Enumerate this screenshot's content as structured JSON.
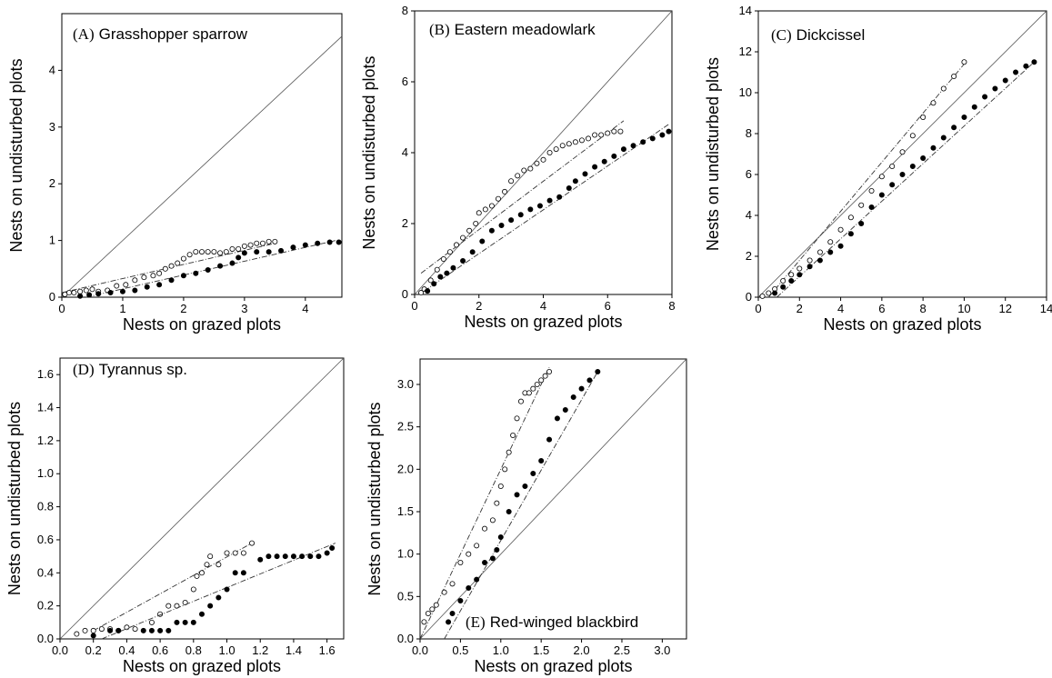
{
  "chart_data": [
    {
      "type": "scatter",
      "title_tag": "(A)",
      "title_name": "Grasshopper sparrow",
      "xlabel": "Nests on grazed plots",
      "ylabel": "Nests on undisturbed plots",
      "xlim": [
        0,
        4.6
      ],
      "ylim": [
        0,
        5
      ],
      "xticks": [
        "0",
        "1",
        "2",
        "3",
        "4"
      ],
      "yticks": [
        "0",
        "1",
        "2",
        "3",
        "4"
      ],
      "identity_line": true,
      "series": [
        {
          "marker": "open",
          "x": [
            0.05,
            0.12,
            0.2,
            0.3,
            0.4,
            0.5,
            0.6,
            0.75,
            0.9,
            1.05,
            1.2,
            1.35,
            1.5,
            1.6,
            1.7,
            1.8,
            1.9,
            2.0,
            2.1,
            2.2,
            2.3,
            2.4,
            2.5,
            2.6,
            2.7,
            2.8,
            2.9,
            3.0,
            3.1,
            3.2,
            3.3,
            3.4,
            3.5
          ],
          "y": [
            0.05,
            0.08,
            0.08,
            0.1,
            0.12,
            0.14,
            0.1,
            0.12,
            0.2,
            0.22,
            0.3,
            0.35,
            0.38,
            0.42,
            0.5,
            0.55,
            0.6,
            0.68,
            0.75,
            0.8,
            0.8,
            0.8,
            0.8,
            0.78,
            0.8,
            0.85,
            0.85,
            0.9,
            0.92,
            0.95,
            0.95,
            0.98,
            0.98
          ],
          "fit": [
            [
              0,
              0.08
            ],
            [
              3.5,
              0.95
            ]
          ]
        },
        {
          "marker": "filled",
          "x": [
            0.3,
            0.45,
            0.6,
            0.8,
            1.0,
            1.2,
            1.4,
            1.6,
            1.8,
            2.0,
            2.2,
            2.4,
            2.6,
            2.8,
            2.9,
            3.0,
            3.2,
            3.4,
            3.6,
            3.8,
            4.0,
            4.2,
            4.4,
            4.55
          ],
          "y": [
            0.02,
            0.04,
            0.06,
            0.08,
            0.1,
            0.12,
            0.18,
            0.22,
            0.3,
            0.38,
            0.42,
            0.48,
            0.55,
            0.6,
            0.7,
            0.78,
            0.8,
            0.8,
            0.82,
            0.88,
            0.92,
            0.95,
            0.97,
            0.97
          ],
          "fit": [
            [
              0.4,
              0.0
            ],
            [
              4.5,
              1.0
            ]
          ]
        }
      ]
    },
    {
      "type": "scatter",
      "title_tag": "(B)",
      "title_name": "Eastern meadowlark",
      "xlabel": "Nests on grazed plots",
      "ylabel": "Nests on undisturbed plots",
      "xlim": [
        0,
        8
      ],
      "ylim": [
        0,
        8
      ],
      "xticks": [
        "0",
        "2",
        "4",
        "6",
        "8"
      ],
      "yticks": [
        "0",
        "2",
        "4",
        "6",
        "8"
      ],
      "identity_line": true,
      "series": [
        {
          "marker": "open",
          "x": [
            0.2,
            0.3,
            0.5,
            0.7,
            0.9,
            1.1,
            1.3,
            1.5,
            1.7,
            1.9,
            2.0,
            2.2,
            2.4,
            2.6,
            2.8,
            3.0,
            3.2,
            3.4,
            3.6,
            3.8,
            4.0,
            4.2,
            4.4,
            4.6,
            4.8,
            5.0,
            5.2,
            5.4,
            5.6,
            5.8,
            6.0,
            6.2,
            6.4
          ],
          "y": [
            0.05,
            0.15,
            0.4,
            0.7,
            1.0,
            1.2,
            1.4,
            1.6,
            1.8,
            2.0,
            2.3,
            2.4,
            2.5,
            2.7,
            2.9,
            3.2,
            3.35,
            3.5,
            3.55,
            3.7,
            3.8,
            4.0,
            4.1,
            4.2,
            4.25,
            4.3,
            4.35,
            4.4,
            4.5,
            4.5,
            4.55,
            4.6,
            4.6
          ],
          "fit": [
            [
              0.2,
              0.6
            ],
            [
              6.5,
              4.9
            ]
          ]
        },
        {
          "marker": "filled",
          "x": [
            0.4,
            0.6,
            0.8,
            1.0,
            1.2,
            1.5,
            1.8,
            2.1,
            2.4,
            2.7,
            3.0,
            3.3,
            3.6,
            3.9,
            4.2,
            4.5,
            4.8,
            5.0,
            5.3,
            5.6,
            5.9,
            6.2,
            6.5,
            6.8,
            7.1,
            7.4,
            7.7,
            7.9
          ],
          "y": [
            0.1,
            0.3,
            0.5,
            0.6,
            0.75,
            0.95,
            1.2,
            1.5,
            1.8,
            1.95,
            2.1,
            2.25,
            2.4,
            2.5,
            2.65,
            2.75,
            3.0,
            3.2,
            3.4,
            3.6,
            3.75,
            3.9,
            4.1,
            4.2,
            4.3,
            4.4,
            4.5,
            4.6
          ],
          "fit": [
            [
              0.3,
              0.1
            ],
            [
              7.9,
              4.8
            ]
          ]
        }
      ]
    },
    {
      "type": "scatter",
      "title_tag": "(C)",
      "title_name": "Dickcissel",
      "xlabel": "Nests on grazed plots",
      "ylabel": "Nests on undisturbed plots",
      "xlim": [
        0,
        14
      ],
      "ylim": [
        0,
        14
      ],
      "xticks": [
        "0",
        "2",
        "4",
        "6",
        "8",
        "10",
        "12",
        "14"
      ],
      "yticks": [
        "0",
        "2",
        "4",
        "6",
        "8",
        "10",
        "12",
        "14"
      ],
      "identity_line": true,
      "series": [
        {
          "marker": "open",
          "x": [
            0.2,
            0.5,
            0.8,
            1.2,
            1.6,
            2.0,
            2.5,
            3.0,
            3.5,
            4.0,
            4.5,
            5.0,
            5.5,
            6.0,
            6.5,
            7.0,
            7.5,
            8.0,
            8.5,
            9.0,
            9.5,
            10.0
          ],
          "y": [
            0.05,
            0.2,
            0.4,
            0.8,
            1.1,
            1.4,
            1.8,
            2.2,
            2.7,
            3.3,
            3.9,
            4.5,
            5.2,
            5.9,
            6.4,
            7.1,
            7.9,
            8.8,
            9.5,
            10.2,
            10.8,
            11.5
          ],
          "fit": [
            [
              0.5,
              0.0
            ],
            [
              10.0,
              11.4
            ]
          ]
        },
        {
          "marker": "filled",
          "x": [
            0.8,
            1.2,
            1.6,
            2.0,
            2.5,
            3.0,
            3.5,
            4.0,
            4.5,
            5.0,
            5.5,
            6.0,
            6.5,
            7.0,
            7.5,
            8.0,
            8.5,
            9.0,
            9.5,
            10.0,
            10.5,
            11.0,
            11.5,
            12.0,
            12.5,
            13.0,
            13.4
          ],
          "y": [
            0.2,
            0.5,
            0.8,
            1.1,
            1.5,
            1.8,
            2.2,
            2.5,
            3.1,
            3.6,
            4.4,
            5.0,
            5.5,
            6.0,
            6.4,
            6.8,
            7.3,
            7.8,
            8.3,
            8.8,
            9.3,
            9.8,
            10.2,
            10.6,
            11.0,
            11.3,
            11.5
          ],
          "fit": [
            [
              0.9,
              0.0
            ],
            [
              13.4,
              11.5
            ]
          ]
        }
      ]
    },
    {
      "type": "scatter",
      "title_tag": "(D)",
      "title_name": "Tyrannus sp.",
      "xlabel": "Nests on grazed plots",
      "ylabel": "Nests on undisturbed plots",
      "xlim": [
        0,
        1.7
      ],
      "ylim": [
        0,
        1.7
      ],
      "xticks": [
        "0.0",
        "0.2",
        "0.4",
        "0.6",
        "0.8",
        "1.0",
        "1.2",
        "1.4",
        "1.6"
      ],
      "yticks": [
        "0.0",
        "0.2",
        "0.4",
        "0.6",
        "0.8",
        "1.0",
        "1.2",
        "1.4",
        "1.6"
      ],
      "identity_line": true,
      "series": [
        {
          "marker": "open",
          "x": [
            0.1,
            0.15,
            0.2,
            0.25,
            0.3,
            0.35,
            0.4,
            0.45,
            0.55,
            0.6,
            0.65,
            0.7,
            0.75,
            0.8,
            0.82,
            0.85,
            0.88,
            0.9,
            0.95,
            1.0,
            1.05,
            1.1,
            1.15
          ],
          "y": [
            0.03,
            0.05,
            0.05,
            0.06,
            0.06,
            0.05,
            0.07,
            0.06,
            0.1,
            0.15,
            0.2,
            0.2,
            0.22,
            0.3,
            0.38,
            0.4,
            0.45,
            0.5,
            0.45,
            0.52,
            0.52,
            0.52,
            0.58
          ],
          "fit": [
            [
              0.2,
              0.05
            ],
            [
              1.15,
              0.58
            ]
          ]
        },
        {
          "marker": "filled",
          "x": [
            0.2,
            0.3,
            0.35,
            0.5,
            0.55,
            0.6,
            0.65,
            0.7,
            0.75,
            0.8,
            0.85,
            0.9,
            0.95,
            1.0,
            1.05,
            1.1,
            1.2,
            1.25,
            1.3,
            1.35,
            1.4,
            1.45,
            1.5,
            1.55,
            1.6,
            1.63
          ],
          "y": [
            0.02,
            0.05,
            0.05,
            0.05,
            0.05,
            0.05,
            0.05,
            0.1,
            0.1,
            0.1,
            0.15,
            0.2,
            0.25,
            0.3,
            0.4,
            0.4,
            0.48,
            0.5,
            0.5,
            0.5,
            0.5,
            0.5,
            0.5,
            0.5,
            0.52,
            0.55
          ],
          "fit": [
            [
              0.25,
              0.0
            ],
            [
              1.65,
              0.58
            ]
          ]
        }
      ]
    },
    {
      "type": "scatter",
      "title_tag": "(E)",
      "title_name": "Red-winged blackbird",
      "xlabel": "Nests on grazed plots",
      "ylabel": "Nests on undisturbed plots",
      "xlim": [
        0,
        3.3
      ],
      "ylim": [
        0,
        3.3
      ],
      "xticks": [
        "0.0",
        "0.5",
        "1.0",
        "1.5",
        "2.0",
        "2.5",
        "3.0"
      ],
      "yticks": [
        "0.0",
        "0.5",
        "1.0",
        "1.5",
        "2.0",
        "2.5",
        "3.0"
      ],
      "identity_line": true,
      "series": [
        {
          "marker": "open",
          "x": [
            0.05,
            0.1,
            0.15,
            0.2,
            0.3,
            0.4,
            0.5,
            0.6,
            0.7,
            0.8,
            0.9,
            0.95,
            1.0,
            1.05,
            1.1,
            1.15,
            1.2,
            1.25,
            1.3,
            1.35,
            1.4,
            1.45,
            1.5,
            1.55,
            1.6
          ],
          "y": [
            0.2,
            0.3,
            0.35,
            0.4,
            0.55,
            0.65,
            0.9,
            1.0,
            1.1,
            1.3,
            1.4,
            1.6,
            1.8,
            2.0,
            2.2,
            2.4,
            2.6,
            2.8,
            2.9,
            2.9,
            2.95,
            3.0,
            3.05,
            3.1,
            3.15
          ],
          "fit": [
            [
              0.0,
              0.0
            ],
            [
              1.6,
              3.2
            ]
          ]
        },
        {
          "marker": "filled",
          "x": [
            0.35,
            0.4,
            0.5,
            0.6,
            0.7,
            0.8,
            0.9,
            0.95,
            1.0,
            1.1,
            1.2,
            1.3,
            1.4,
            1.5,
            1.6,
            1.7,
            1.8,
            1.9,
            2.0,
            2.1,
            2.2
          ],
          "y": [
            0.2,
            0.3,
            0.45,
            0.6,
            0.7,
            0.9,
            0.95,
            1.05,
            1.2,
            1.5,
            1.7,
            1.8,
            1.95,
            2.1,
            2.35,
            2.6,
            2.7,
            2.85,
            2.95,
            3.05,
            3.15
          ],
          "fit": [
            [
              0.3,
              0.0
            ],
            [
              2.2,
              3.15
            ]
          ]
        }
      ]
    }
  ]
}
